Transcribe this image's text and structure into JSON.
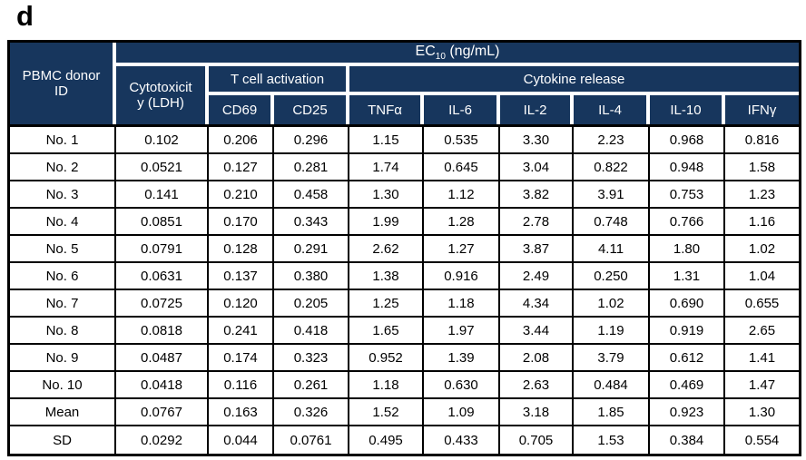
{
  "figure_label": "d",
  "colors": {
    "header_bg": "#17365D",
    "header_text": "#FFFFFF",
    "body_bg": "#FFFFFF",
    "body_text": "#000000",
    "grid_border": "#000000"
  },
  "table": {
    "title": {
      "prefix": "EC",
      "subscript": "10",
      "suffix": " (ng/mL)"
    },
    "corner_header": "PBMC donor ID",
    "group_headers": {
      "cytotoxicity_line1": "Cytotoxicit",
      "cytotoxicity_line2": "y (LDH)",
      "t_cell_activation": "T cell activation",
      "cytokine_release": "Cytokine release"
    },
    "sub_headers": [
      "CD69",
      "CD25",
      "TNFα",
      "IL-6",
      "IL-2",
      "IL-4",
      "IL-10",
      "IFNγ"
    ],
    "columns": [
      "PBMC donor ID",
      "Cytotoxicity (LDH)",
      "CD69",
      "CD25",
      "TNFα",
      "IL-6",
      "IL-2",
      "IL-4",
      "IL-10",
      "IFNγ"
    ],
    "rows": [
      {
        "id": "No. 1",
        "values": [
          "0.102",
          "0.206",
          "0.296",
          "1.15",
          "0.535",
          "3.30",
          "2.23",
          "0.968",
          "0.816"
        ]
      },
      {
        "id": "No. 2",
        "values": [
          "0.0521",
          "0.127",
          "0.281",
          "1.74",
          "0.645",
          "3.04",
          "0.822",
          "0.948",
          "1.58"
        ]
      },
      {
        "id": "No. 3",
        "values": [
          "0.141",
          "0.210",
          "0.458",
          "1.30",
          "1.12",
          "3.82",
          "3.91",
          "0.753",
          "1.23"
        ]
      },
      {
        "id": "No. 4",
        "values": [
          "0.0851",
          "0.170",
          "0.343",
          "1.99",
          "1.28",
          "2.78",
          "0.748",
          "0.766",
          "1.16"
        ]
      },
      {
        "id": "No. 5",
        "values": [
          "0.0791",
          "0.128",
          "0.291",
          "2.62",
          "1.27",
          "3.87",
          "4.11",
          "1.80",
          "1.02"
        ]
      },
      {
        "id": "No. 6",
        "values": [
          "0.0631",
          "0.137",
          "0.380",
          "1.38",
          "0.916",
          "2.49",
          "0.250",
          "1.31",
          "1.04"
        ]
      },
      {
        "id": "No. 7",
        "values": [
          "0.0725",
          "0.120",
          "0.205",
          "1.25",
          "1.18",
          "4.34",
          "1.02",
          "0.690",
          "0.655"
        ]
      },
      {
        "id": "No. 8",
        "values": [
          "0.0818",
          "0.241",
          "0.418",
          "1.65",
          "1.97",
          "3.44",
          "1.19",
          "0.919",
          "2.65"
        ]
      },
      {
        "id": "No. 9",
        "values": [
          "0.0487",
          "0.174",
          "0.323",
          "0.952",
          "1.39",
          "2.08",
          "3.79",
          "0.612",
          "1.41"
        ]
      },
      {
        "id": "No. 10",
        "values": [
          "0.0418",
          "0.116",
          "0.261",
          "1.18",
          "0.630",
          "2.63",
          "0.484",
          "0.469",
          "1.47"
        ]
      },
      {
        "id": "Mean",
        "values": [
          "0.0767",
          "0.163",
          "0.326",
          "1.52",
          "1.09",
          "3.18",
          "1.85",
          "0.923",
          "1.30"
        ]
      },
      {
        "id": "SD",
        "values": [
          "0.0292",
          "0.044",
          "0.0761",
          "0.495",
          "0.433",
          "0.705",
          "1.53",
          "0.384",
          "0.554"
        ]
      }
    ]
  }
}
